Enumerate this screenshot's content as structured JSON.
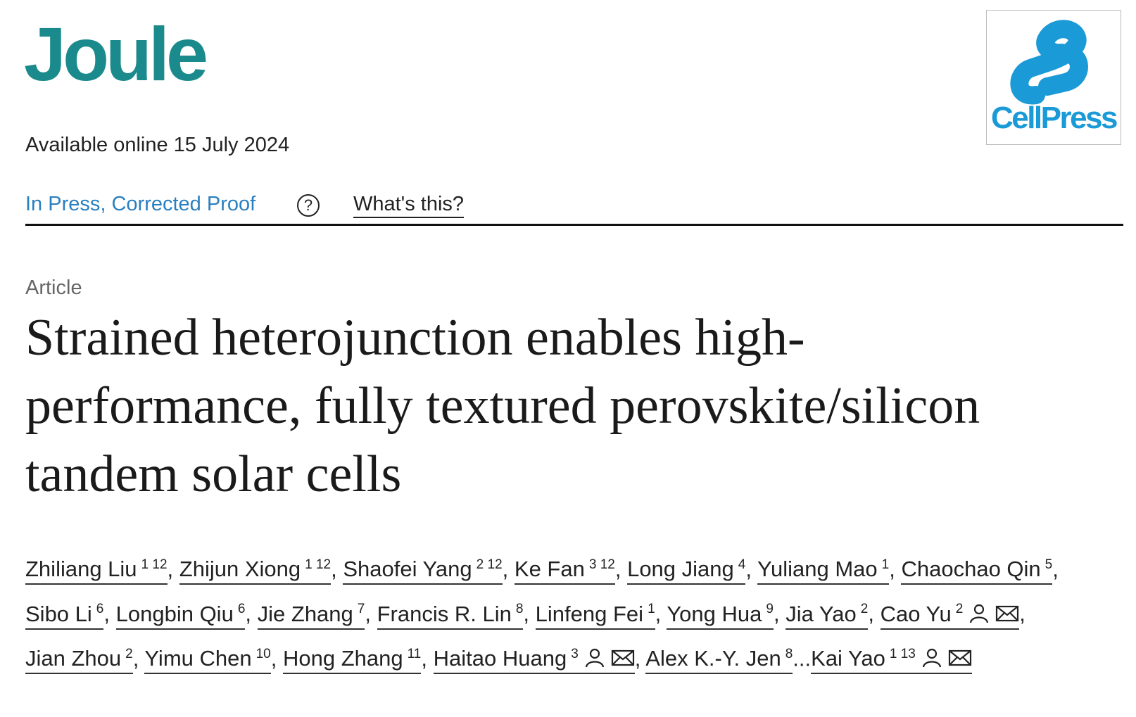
{
  "journal": "Joule",
  "publisher": "CellPress",
  "available": "Available online 15 July 2024",
  "status": "In Press, Corrected Proof",
  "help_icon": "?",
  "whats_this": "What's this?",
  "article_type": "Article",
  "title": "Strained heterojunction enables high-performance, fully textured perovskite/silicon tandem solar cells",
  "authors": [
    {
      "name": "Zhiliang Liu",
      "affiliations": "1 12",
      "separator": ","
    },
    {
      "name": "Zhijun Xiong",
      "affiliations": "1 12",
      "separator": ","
    },
    {
      "name": "Shaofei Yang",
      "affiliations": "2 12",
      "separator": ","
    },
    {
      "name": "Ke Fan",
      "affiliations": "3 12",
      "separator": ","
    },
    {
      "name": "Long Jiang",
      "affiliations": "4",
      "separator": ","
    },
    {
      "name": "Yuliang Mao",
      "affiliations": "1",
      "separator": ","
    },
    {
      "name": "Chaochao Qin",
      "affiliations": "5",
      "separator": ","
    },
    {
      "name": "Sibo Li",
      "affiliations": "6",
      "separator": ","
    },
    {
      "name": "Longbin Qiu",
      "affiliations": "6",
      "separator": ","
    },
    {
      "name": "Jie Zhang",
      "affiliations": "7",
      "separator": ","
    },
    {
      "name": "Francis R. Lin",
      "affiliations": "8",
      "separator": ","
    },
    {
      "name": "Linfeng Fei",
      "affiliations": "1",
      "separator": ","
    },
    {
      "name": "Yong Hua",
      "affiliations": "9",
      "separator": ","
    },
    {
      "name": "Jia Yao",
      "affiliations": "2",
      "separator": ","
    },
    {
      "name": "Cao Yu",
      "affiliations": "2",
      "corresponding": true,
      "separator": ","
    },
    {
      "name": "Jian Zhou",
      "affiliations": "2",
      "separator": ","
    },
    {
      "name": "Yimu Chen",
      "affiliations": "10",
      "separator": ","
    },
    {
      "name": "Hong Zhang",
      "affiliations": "11",
      "separator": ","
    },
    {
      "name": "Haitao Huang",
      "affiliations": "3",
      "corresponding": true,
      "separator": ","
    },
    {
      "name": "Alex K.-Y. Jen",
      "affiliations": "8",
      "separator": "..."
    },
    {
      "name": "Kai Yao",
      "affiliations": "1 13",
      "corresponding": true
    }
  ]
}
